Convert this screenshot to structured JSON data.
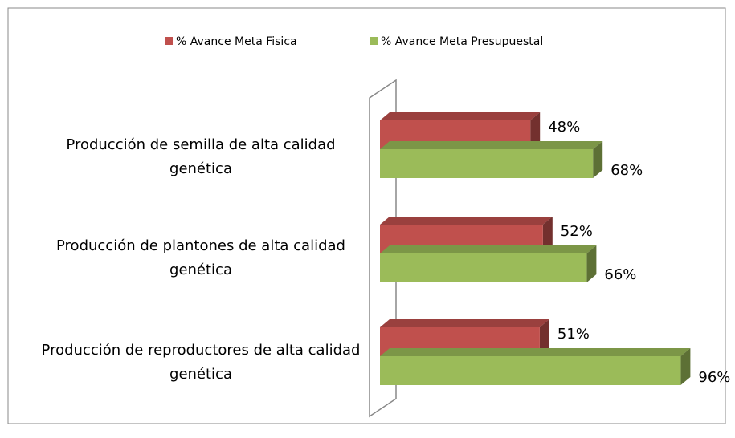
{
  "chart_data": {
    "type": "bar3d_horizontal",
    "categories": [
      "Producción de semilla de alta calidad genética",
      "Producción de plantones de alta calidad genética",
      "Producción de reproductores de alta calidad genética"
    ],
    "series": [
      {
        "name": "% Avance Meta Fisica",
        "color": "#c0504d",
        "values": [
          48,
          52,
          51
        ],
        "value_labels": [
          "48%",
          "52%",
          "51%"
        ]
      },
      {
        "name": "% Avance Meta Presupuestal",
        "color": "#9bbb59",
        "values": [
          68,
          66,
          96
        ],
        "value_labels": [
          "68%",
          "66%",
          "96%"
        ]
      }
    ],
    "legend": "top"
  }
}
